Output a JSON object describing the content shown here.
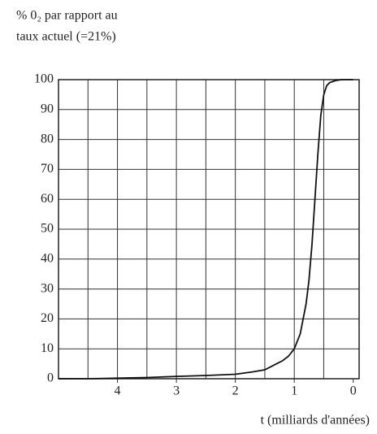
{
  "chart_data": {
    "type": "line",
    "ylabel_lines": [
      "% 0₂ par rapport au",
      "taux actuel (=21%)"
    ],
    "xlabel": "t  (milliards d'années)",
    "x": [
      5,
      4.5,
      4,
      3.5,
      3,
      2.5,
      2,
      1.7,
      1.5,
      1.3,
      1.2,
      1.1,
      1,
      0.9,
      0.8,
      0.75,
      0.7,
      0.65,
      0.6,
      0.55,
      0.5,
      0.45,
      0.4,
      0.3,
      0.2,
      0.1,
      0
    ],
    "values": [
      0,
      0,
      0.2,
      0.4,
      0.8,
      1.1,
      1.5,
      2.3,
      3,
      5,
      6,
      7.5,
      10,
      15,
      25,
      33,
      45,
      60,
      75,
      88,
      95,
      98,
      99,
      99.7,
      100,
      100,
      100
    ],
    "color": "#111",
    "xlim": [
      5,
      -0.1
    ],
    "xticks": [
      4,
      3,
      2,
      1,
      0
    ],
    "xgrid": [
      4.5,
      4,
      3.5,
      3,
      2.5,
      2,
      1.5,
      1,
      0.5
    ],
    "ylim": [
      0,
      100
    ],
    "yticks": [
      0,
      10,
      20,
      30,
      40,
      50,
      60,
      70,
      80,
      90,
      100
    ],
    "grid": true
  }
}
